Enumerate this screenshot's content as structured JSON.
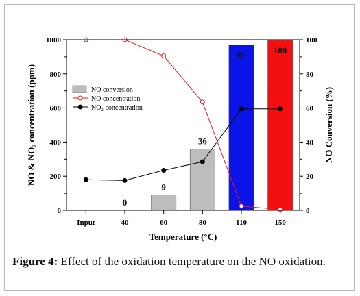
{
  "caption": {
    "label": "Figure 4:",
    "text": " Effect of the oxidation temperature on the NO oxidation."
  },
  "chart_data": {
    "type": "bar+line",
    "categories": [
      "Input",
      "40",
      "60",
      "80",
      "110",
      "150"
    ],
    "xlabel": "Temperature (°C)",
    "ylabel_left": "NO & NO₂ concentration (ppm)",
    "ylabel_right": "NO Conversion (%)",
    "ylim_left": [
      0,
      1000
    ],
    "ylim_right": [
      0,
      100
    ],
    "yticks_left": [
      "0",
      "200",
      "400",
      "600",
      "800",
      "1000"
    ],
    "yticks_right": [
      "0",
      "20",
      "40",
      "60",
      "80",
      "100"
    ],
    "bars": {
      "name": "NO conversion",
      "values": [
        null,
        0,
        9,
        36,
        97,
        100
      ],
      "labels": [
        "",
        "0",
        "9",
        "36",
        "97",
        "100"
      ],
      "colors": [
        "#bdbdbd",
        "#bdbdbd",
        "#bdbdbd",
        "#bdbdbd",
        "#0a14e6",
        "#f21010"
      ]
    },
    "series": [
      {
        "name": "NO concentration",
        "axis": "left",
        "color": "#e8191a",
        "marker": "open-circle",
        "values": [
          1000,
          1000,
          905,
          635,
          25,
          5
        ]
      },
      {
        "name": "NO₂ concentration",
        "axis": "left",
        "color": "#000000",
        "marker": "filled-circle",
        "values": [
          180,
          175,
          235,
          285,
          595,
          595
        ]
      }
    ],
    "legend_position": "top-left"
  }
}
